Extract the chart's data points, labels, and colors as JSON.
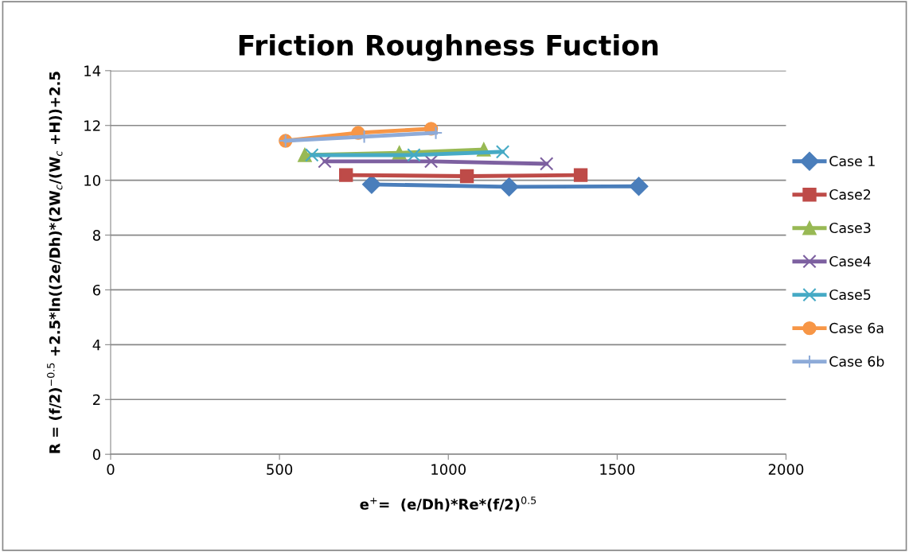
{
  "chart_data": {
    "type": "line",
    "title": "Friction Roughness Fuction",
    "xlabel": "e$^{+}$=  (e/Dh)*Re*(f/2)$^{0.5}$",
    "ylabel": "R = (f/2)$^{−0.5}$ +2.5*ln((2e/Dh)*(2W$_{c}$/(W$_{c}$ +H))+2.5",
    "xlim": [
      0,
      2000
    ],
    "xticks": [
      0,
      500,
      1000,
      1500,
      2000
    ],
    "ylim": [
      0,
      14
    ],
    "yticks": [
      0,
      2,
      4,
      6,
      8,
      10,
      12,
      14
    ],
    "grid": "y",
    "legend": "right",
    "line_style": "solid",
    "series": [
      {
        "name": "Case 1",
        "color": "#4a7ebb",
        "marker": "diamond",
        "x": [
          773,
          1180,
          1564
        ],
        "values": [
          9.85,
          9.76,
          9.78
        ]
      },
      {
        "name": "Case2",
        "color": "#be4b48",
        "marker": "square",
        "x": [
          697,
          1055,
          1392
        ],
        "values": [
          10.19,
          10.15,
          10.19
        ]
      },
      {
        "name": "Case3",
        "color": "#98b954",
        "marker": "triangle",
        "x": [
          575,
          855,
          1105
        ],
        "values": [
          10.92,
          11.0,
          11.12
        ]
      },
      {
        "name": "Case4",
        "color": "#7d60a0",
        "marker": "cross",
        "x": [
          634,
          949,
          1291
        ],
        "values": [
          10.69,
          10.69,
          10.6
        ]
      },
      {
        "name": "Case5",
        "color": "#46aac5",
        "marker": "cross",
        "x": [
          596,
          898,
          1161
        ],
        "values": [
          10.92,
          10.92,
          11.04
        ]
      },
      {
        "name": "Case 6a",
        "color": "#f79646",
        "marker": "circle",
        "x": [
          518,
          733,
          949
        ],
        "values": [
          11.44,
          11.73,
          11.88
        ]
      },
      {
        "name": "Case 6b",
        "color": "#8eabd8",
        "marker": "plus",
        "x": [
          518,
          751,
          963
        ],
        "values": [
          11.44,
          11.59,
          11.73
        ]
      }
    ]
  }
}
